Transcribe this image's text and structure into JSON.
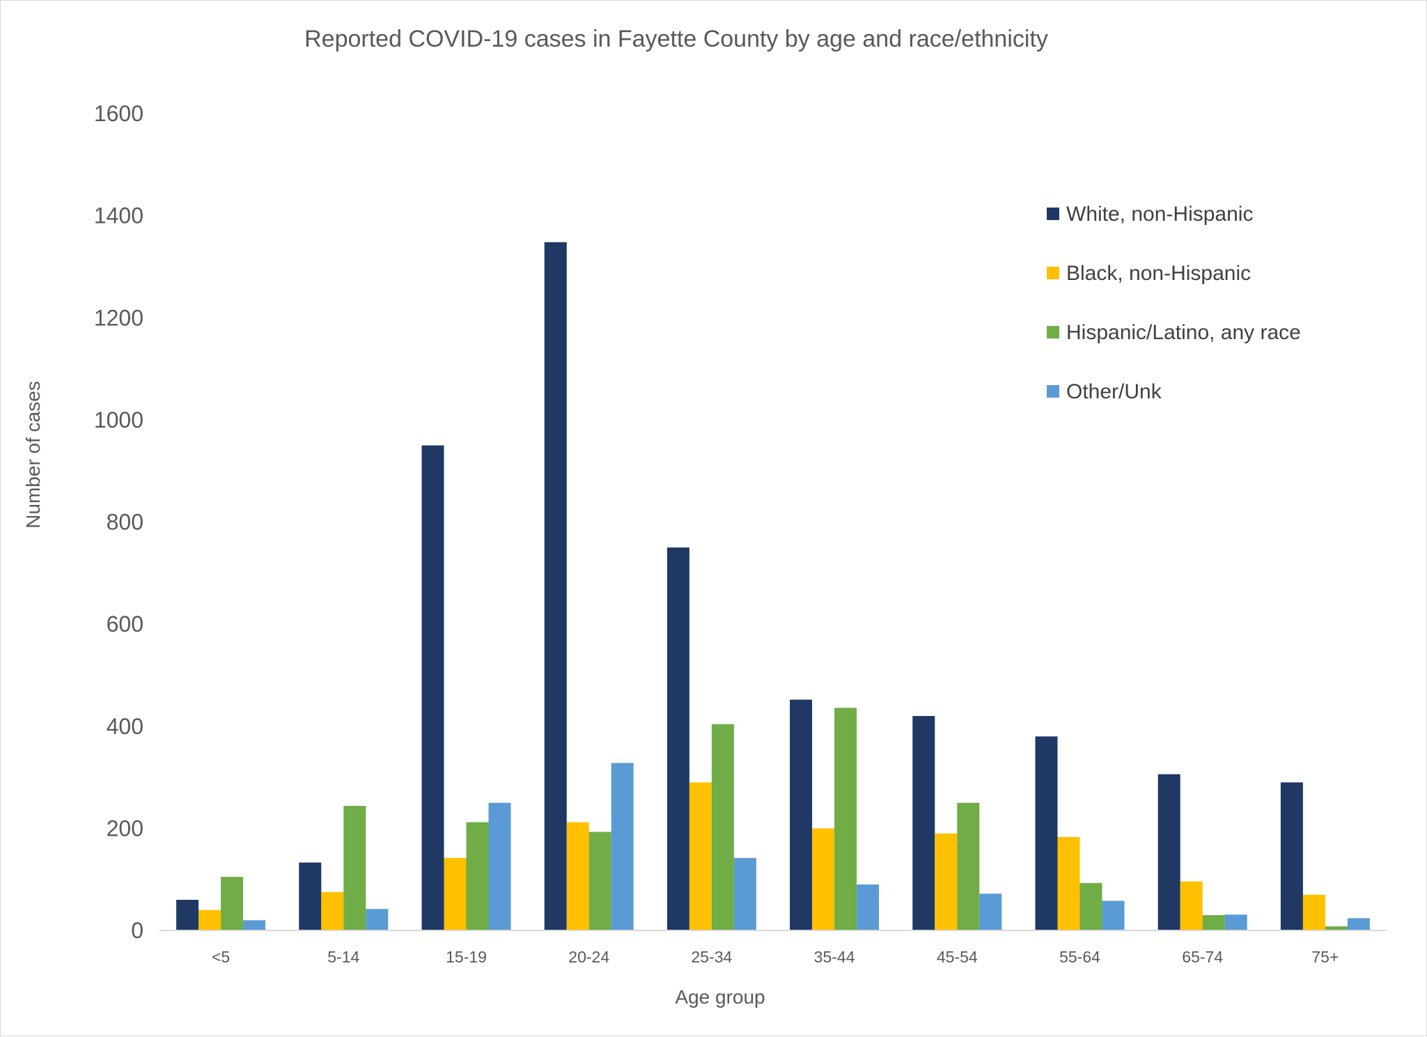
{
  "chart_data": {
    "type": "bar",
    "title": "Reported COVID-19 cases in Fayette County by age and race/ethnicity",
    "xlabel": "Age group",
    "ylabel": "Number of cases",
    "ylim": [
      0,
      1600
    ],
    "yticks": [
      0,
      200,
      400,
      600,
      800,
      1000,
      1200,
      1400,
      1600
    ],
    "grid": false,
    "legend_position": "top-right",
    "categories": [
      "<5",
      "5-14",
      "15-19",
      "20-24",
      "25-34",
      "35-44",
      "45-54",
      "55-64",
      "65-74",
      "75+"
    ],
    "series": [
      {
        "name": "White, non-Hispanic",
        "color": "#1f3864",
        "values": [
          60,
          133,
          950,
          1348,
          750,
          452,
          420,
          380,
          306,
          290
        ]
      },
      {
        "name": "Black, non-Hispanic",
        "color": "#ffc000",
        "values": [
          40,
          75,
          142,
          212,
          290,
          200,
          190,
          183,
          96,
          70
        ]
      },
      {
        "name": "Hispanic/Latino, any race",
        "color": "#70ad47",
        "values": [
          105,
          244,
          212,
          193,
          404,
          436,
          250,
          93,
          30,
          8
        ]
      },
      {
        "name": "Other/Unk",
        "color": "#5b9bd5",
        "values": [
          20,
          42,
          250,
          328,
          142,
          90,
          72,
          58,
          31,
          24
        ]
      }
    ]
  }
}
